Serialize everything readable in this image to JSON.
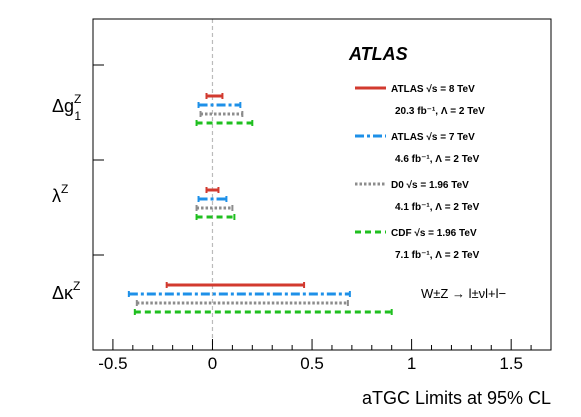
{
  "chart_data": {
    "type": "interval",
    "xlabel": "aTGC Limits at 95% CL",
    "xlim": [
      -0.6,
      1.7
    ],
    "xticks": [
      -0.5,
      0,
      0.5,
      1,
      1.5
    ],
    "xtick_labels": [
      "-0.5",
      "0",
      "0.5",
      "1",
      "1.5"
    ],
    "reference_line": 0,
    "parameters": [
      {
        "id": "dg1z",
        "base": "Δg",
        "sup": "Z",
        "sub": "1"
      },
      {
        "id": "lz",
        "base": "λ",
        "sup": "Z",
        "sub": ""
      },
      {
        "id": "dkz",
        "base": "Δκ",
        "sup": "Z",
        "sub": ""
      }
    ],
    "series": [
      {
        "line1": "ATLAS √s = 8 TeV",
        "line2": "20.3 fb⁻¹, Λ = 2 TeV",
        "color": "#d23a2f",
        "dash": "solid",
        "intervals": {
          "dg1z": [
            -0.03,
            0.05
          ],
          "lz": [
            -0.03,
            0.03
          ],
          "dkz": [
            -0.23,
            0.46
          ]
        }
      },
      {
        "line1": "ATLAS √s = 7 TeV",
        "line2": "4.6 fb⁻¹, Λ = 2 TeV",
        "color": "#1e90e8",
        "dash": "dashdot",
        "intervals": {
          "dg1z": [
            -0.07,
            0.14
          ],
          "lz": [
            -0.07,
            0.07
          ],
          "dkz": [
            -0.42,
            0.69
          ]
        }
      },
      {
        "line1": "D0 √s = 1.96 TeV",
        "line2": "4.1 fb⁻¹, Λ = 2 TeV",
        "color": "#8c8c8c",
        "dash": "dotted",
        "intervals": {
          "dg1z": [
            -0.06,
            0.15
          ],
          "lz": [
            -0.08,
            0.1
          ],
          "dkz": [
            -0.38,
            0.68
          ]
        }
      },
      {
        "line1": "CDF √s = 1.96 TeV",
        "line2": "7.1 fb⁻¹, Λ = 2 TeV",
        "color": "#1fbf1f",
        "dash": "dashed",
        "intervals": {
          "dg1z": [
            -0.08,
            0.2
          ],
          "lz": [
            -0.08,
            0.11
          ],
          "dkz": [
            -0.39,
            0.9
          ]
        }
      }
    ],
    "experiment_label": "ATLAS",
    "process_label": "W±Z → l±νl+l−"
  }
}
